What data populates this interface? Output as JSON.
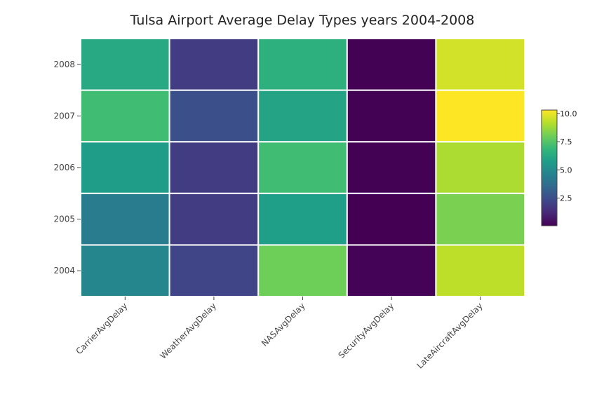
{
  "chart_data": {
    "type": "heatmap",
    "title": "Tulsa Airport Average Delay Types years 2004-2008",
    "x_categories": [
      "CarrierAvgDelay",
      "WeatherAvgDelay",
      "NASAvgDelay",
      "SecurityAvgDelay",
      "LateAircraftAvgDelay"
    ],
    "y_categories": [
      "2004",
      "2005",
      "2006",
      "2007",
      "2008"
    ],
    "z": [
      [
        4.8,
        2.2,
        8.0,
        0.1,
        9.3
      ],
      [
        4.3,
        1.9,
        5.8,
        0.05,
        8.2
      ],
      [
        5.7,
        1.9,
        7.1,
        0.08,
        9.0
      ],
      [
        7.1,
        2.6,
        6.0,
        0.08,
        10.3
      ],
      [
        6.2,
        1.9,
        6.5,
        0.08,
        9.6
      ]
    ],
    "colorscale": "Viridis",
    "zmin": 0.05,
    "zmax": 10.3,
    "colorbar": {
      "ticks": [
        2.5,
        5.0,
        7.5,
        10.0
      ],
      "tick_labels": [
        "2.5",
        "5.0",
        "7.5",
        "10.0"
      ],
      "placement": "right"
    },
    "xlabel": "",
    "ylabel": ""
  }
}
